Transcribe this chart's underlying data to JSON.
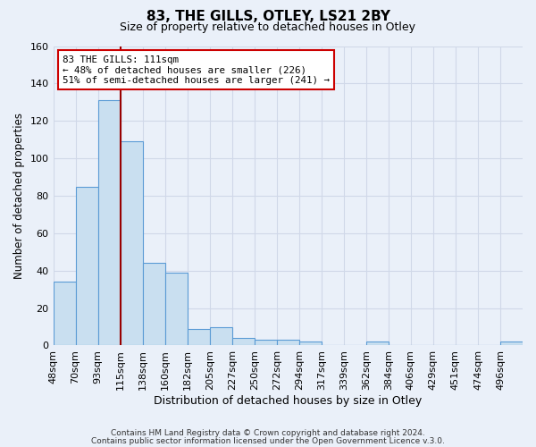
{
  "title": "83, THE GILLS, OTLEY, LS21 2BY",
  "subtitle": "Size of property relative to detached houses in Otley",
  "xlabel": "Distribution of detached houses by size in Otley",
  "ylabel": "Number of detached properties",
  "bin_labels": [
    "48sqm",
    "70sqm",
    "93sqm",
    "115sqm",
    "138sqm",
    "160sqm",
    "182sqm",
    "205sqm",
    "227sqm",
    "250sqm",
    "272sqm",
    "294sqm",
    "317sqm",
    "339sqm",
    "362sqm",
    "384sqm",
    "406sqm",
    "429sqm",
    "451sqm",
    "474sqm",
    "496sqm"
  ],
  "bar_heights": [
    34,
    85,
    131,
    109,
    44,
    39,
    9,
    10,
    4,
    3,
    3,
    2,
    0,
    0,
    2,
    0,
    0,
    0,
    0,
    0,
    2
  ],
  "bar_color": "#c9dff0",
  "bar_edge_color": "#5b9bd5",
  "grid_color": "#d0d8e8",
  "background_color": "#eaf0f9",
  "marker_line_color": "#990000",
  "annotation_title": "83 THE GILLS: 111sqm",
  "annotation_line2": "← 48% of detached houses are smaller (226)",
  "annotation_line3": "51% of semi-detached houses are larger (241) →",
  "annotation_box_color": "white",
  "annotation_box_edge": "#cc0000",
  "ylim": [
    0,
    160
  ],
  "footnote1": "Contains HM Land Registry data © Crown copyright and database right 2024.",
  "footnote2": "Contains public sector information licensed under the Open Government Licence v.3.0."
}
